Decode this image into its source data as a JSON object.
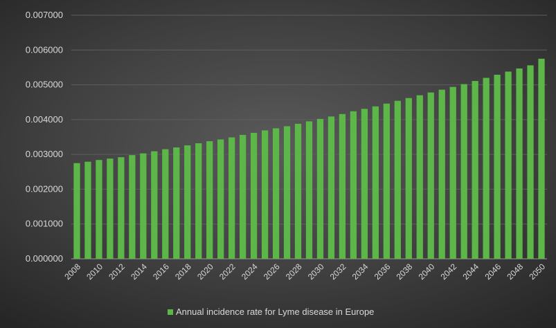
{
  "chart_data": {
    "type": "bar",
    "title": "",
    "xlabel": "",
    "ylabel": "",
    "ylim": [
      0,
      0.007
    ],
    "y_ticks": [
      "0.000000",
      "0.001000",
      "0.002000",
      "0.003000",
      "0.004000",
      "0.005000",
      "0.006000",
      "0.007000"
    ],
    "grid": "horizontal",
    "legend_position": "bottom",
    "bar_color": "#5cb648",
    "categories": [
      "2008",
      "2009",
      "2010",
      "2011",
      "2012",
      "2013",
      "2014",
      "2015",
      "2016",
      "2017",
      "2018",
      "2019",
      "2020",
      "2021",
      "2022",
      "2023",
      "2024",
      "2025",
      "2026",
      "2027",
      "2028",
      "2029",
      "2030",
      "2031",
      "2032",
      "2033",
      "2034",
      "2035",
      "2036",
      "2037",
      "2038",
      "2039",
      "2040",
      "2041",
      "2042",
      "2043",
      "2044",
      "2045",
      "2046",
      "2047",
      "2048",
      "2049",
      "2050"
    ],
    "x_tick_labels": [
      "2008",
      "2010",
      "2012",
      "2014",
      "2016",
      "2018",
      "2020",
      "2022",
      "2024",
      "2026",
      "2028",
      "2030",
      "2032",
      "2034",
      "2036",
      "2038",
      "2040",
      "2042",
      "2044",
      "2046",
      "2048",
      "2050"
    ],
    "series": [
      {
        "name": "Annual incidence rate for Lyme disease in Europe",
        "values": [
          0.00275,
          0.00279,
          0.00284,
          0.00288,
          0.00292,
          0.00298,
          0.00303,
          0.00309,
          0.00315,
          0.0032,
          0.00326,
          0.00332,
          0.00338,
          0.00343,
          0.00349,
          0.00356,
          0.00362,
          0.00369,
          0.00375,
          0.00381,
          0.00388,
          0.00395,
          0.00402,
          0.00409,
          0.00416,
          0.00424,
          0.00431,
          0.00438,
          0.00446,
          0.00454,
          0.00462,
          0.0047,
          0.00478,
          0.00486,
          0.00494,
          0.00502,
          0.00511,
          0.0052,
          0.00529,
          0.00538,
          0.00547,
          0.00556,
          0.00575
        ]
      }
    ]
  }
}
